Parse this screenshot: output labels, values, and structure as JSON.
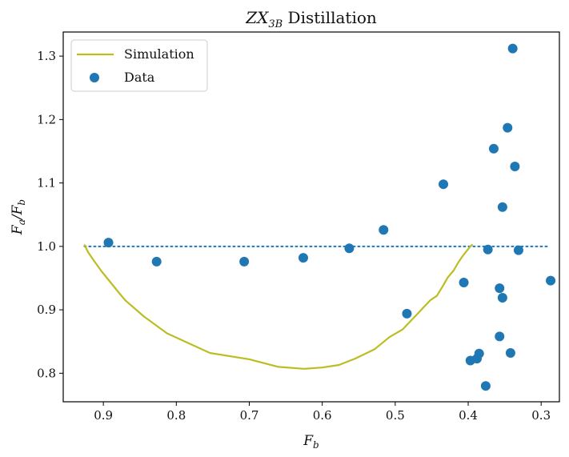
{
  "chart_data": {
    "type": "scatter",
    "title": "ZX_{3B} Distillation",
    "xlabel": "F_b",
    "ylabel": "F_a/F_b",
    "xlim": [
      0.955,
      0.275
    ],
    "ylim": [
      0.755,
      1.338
    ],
    "x_inverted": true,
    "grid": false,
    "legend_position": "top-left",
    "xticks": [
      0.9,
      0.8,
      0.7,
      0.6,
      0.5,
      0.4,
      0.3
    ],
    "xtick_labels": [
      "0.9",
      "0.8",
      "0.7",
      "0.6",
      "0.5",
      "0.4",
      "0.3"
    ],
    "yticks": [
      0.8,
      0.9,
      1.0,
      1.1,
      1.2,
      1.3
    ],
    "ytick_labels": [
      "0.8",
      "0.9",
      "1.0",
      "1.1",
      "1.2",
      "1.3"
    ],
    "series": [
      {
        "name": "Simulation",
        "kind": "line",
        "color": "#bcbd22",
        "x": [
          0.926,
          0.921,
          0.912,
          0.902,
          0.89,
          0.878,
          0.87,
          0.845,
          0.813,
          0.754,
          0.7,
          0.66,
          0.625,
          0.6,
          0.577,
          0.555,
          0.528,
          0.508,
          0.49,
          0.47,
          0.452,
          0.443,
          0.435,
          0.428,
          0.42,
          0.414,
          0.408,
          0.402,
          0.397,
          0.394
        ],
        "y": [
          1.003,
          0.991,
          0.976,
          0.96,
          0.943,
          0.926,
          0.915,
          0.89,
          0.863,
          0.832,
          0.822,
          0.81,
          0.807,
          0.809,
          0.813,
          0.823,
          0.838,
          0.857,
          0.869,
          0.893,
          0.915,
          0.922,
          0.937,
          0.951,
          0.962,
          0.974,
          0.984,
          0.993,
          1.0,
          1.003
        ]
      },
      {
        "name": "Data",
        "kind": "scatter",
        "color": "#1f77b4",
        "x": [
          0.893,
          0.827,
          0.707,
          0.626,
          0.563,
          0.516,
          0.484,
          0.434,
          0.406,
          0.397,
          0.388,
          0.385,
          0.376,
          0.373,
          0.365,
          0.357,
          0.357,
          0.353,
          0.353,
          0.346,
          0.342,
          0.339,
          0.336,
          0.331,
          0.287
        ],
        "y": [
          1.006,
          0.976,
          0.976,
          0.982,
          0.997,
          1.026,
          0.894,
          1.098,
          0.943,
          0.82,
          0.823,
          0.831,
          0.78,
          0.995,
          1.154,
          0.934,
          0.858,
          1.062,
          0.919,
          1.187,
          0.832,
          1.312,
          1.126,
          0.994,
          0.946
        ]
      },
      {
        "kind": "reference",
        "style": "dotted",
        "color": "#1f77b4",
        "x": [
          0.926,
          0.29
        ],
        "y": [
          1.0,
          1.0
        ]
      }
    ]
  }
}
